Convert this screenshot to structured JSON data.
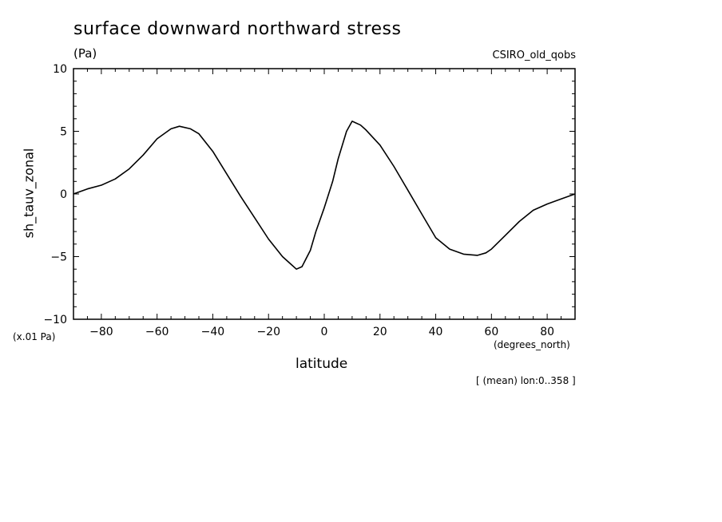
{
  "header": {
    "title": "surface downward northward stress",
    "units": "(Pa)",
    "model": "CSIRO_old_qobs"
  },
  "axes": {
    "scale_note": "(x.01 Pa)",
    "x_units": "(degrees_north)",
    "footnote": "[ (mean) lon:0..358 ]"
  },
  "chart_data": {
    "type": "line",
    "title": "surface downward northward stress",
    "xlabel": "latitude",
    "ylabel": "sh_tauv_zonal",
    "xlim": [
      -90,
      90
    ],
    "ylim": [
      -10,
      10
    ],
    "x_ticks": [
      -80,
      -60,
      -40,
      -20,
      0,
      20,
      40,
      60,
      80
    ],
    "y_ticks": [
      -10,
      -5,
      0,
      5,
      10
    ],
    "x_tick_labels": [
      "-80",
      "-60",
      "-40",
      "-20",
      "0",
      "20",
      "40",
      "60",
      "80"
    ],
    "y_tick_labels": [
      "-10",
      "-5",
      "0",
      "5",
      "10"
    ],
    "grid": false,
    "series": [
      {
        "x": [
          -90,
          -85,
          -80,
          -75,
          -70,
          -65,
          -60,
          -55,
          -52,
          -48,
          -45,
          -40,
          -35,
          -30,
          -25,
          -20,
          -15,
          -12,
          -10,
          -8,
          -5,
          -3,
          0,
          3,
          5,
          8,
          10,
          13,
          15,
          20,
          25,
          30,
          35,
          40,
          45,
          50,
          55,
          58,
          60,
          65,
          70,
          75,
          80,
          85,
          90
        ],
        "y": [
          0.0,
          0.4,
          0.7,
          1.2,
          2.0,
          3.1,
          4.4,
          5.2,
          5.4,
          5.2,
          4.8,
          3.4,
          1.6,
          -0.2,
          -1.9,
          -3.6,
          -5.0,
          -5.6,
          -6.0,
          -5.8,
          -4.5,
          -3.0,
          -1.1,
          1.0,
          2.8,
          5.0,
          5.8,
          5.5,
          5.1,
          3.9,
          2.2,
          0.3,
          -1.6,
          -3.5,
          -4.4,
          -4.8,
          -4.9,
          -4.7,
          -4.4,
          -3.3,
          -2.2,
          -1.3,
          -0.8,
          -0.4,
          0.0
        ]
      }
    ]
  }
}
